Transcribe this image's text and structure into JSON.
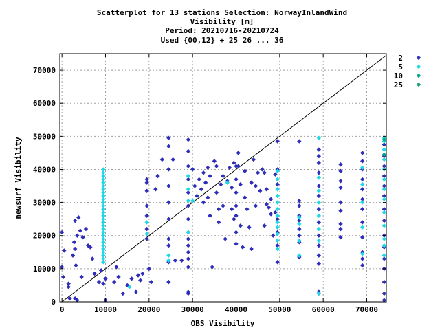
{
  "chart_data": {
    "type": "scatter",
    "title": [
      "Scatterplot for   13 stations Selection: NorwayInlandWind",
      "Visibility [m]",
      "Period: 20210716-20210724",
      "Used {00,12} + 25 26 ... 36"
    ],
    "xlabel": "OBS Visibility",
    "ylabel": "newsurf Visibility",
    "xlim": [
      -500,
      74500
    ],
    "ylim": [
      0,
      75000
    ],
    "xticks": [
      0,
      10000,
      20000,
      30000,
      40000,
      50000,
      60000,
      70000
    ],
    "yticks": [
      0,
      10000,
      20000,
      30000,
      40000,
      50000,
      60000,
      70000
    ],
    "grid": true,
    "diagonal": true,
    "legend_position": "right",
    "series": [
      {
        "name": "2",
        "color": "#2e2eb8",
        "points": [
          [
            0,
            21000
          ],
          [
            0,
            10500
          ],
          [
            500,
            15500
          ],
          [
            300,
            7500
          ],
          [
            1500,
            5500
          ],
          [
            1500,
            4500
          ],
          [
            1800,
            1000
          ],
          [
            2500,
            14000
          ],
          [
            2800,
            18000
          ],
          [
            3000,
            24500
          ],
          [
            3000,
            16000
          ],
          [
            3200,
            11000
          ],
          [
            3500,
            20000
          ],
          [
            3800,
            25500
          ],
          [
            3000,
            1000
          ],
          [
            3500,
            500
          ],
          [
            4200,
            21500
          ],
          [
            4500,
            7500
          ],
          [
            4800,
            19500
          ],
          [
            5500,
            22000
          ],
          [
            6000,
            17000
          ],
          [
            6500,
            16500
          ],
          [
            7000,
            13000
          ],
          [
            7500,
            8500
          ],
          [
            8500,
            6000
          ],
          [
            9000,
            9500
          ],
          [
            9500,
            5500
          ],
          [
            9500,
            24000
          ],
          [
            10000,
            500
          ],
          [
            10000,
            7000
          ],
          [
            12500,
            10500
          ],
          [
            12000,
            6000
          ],
          [
            13000,
            7500
          ],
          [
            14000,
            2500
          ],
          [
            15000,
            5000
          ],
          [
            16000,
            7000
          ],
          [
            17000,
            3000
          ],
          [
            17500,
            8000
          ],
          [
            18000,
            6500
          ],
          [
            18500,
            8500
          ],
          [
            19500,
            37000
          ],
          [
            19500,
            36000
          ],
          [
            19500,
            33500
          ],
          [
            19500,
            29000
          ],
          [
            19500,
            26000
          ],
          [
            19500,
            22000
          ],
          [
            19500,
            19000
          ],
          [
            20000,
            10000
          ],
          [
            20500,
            6000
          ],
          [
            21500,
            34000
          ],
          [
            22000,
            38000
          ],
          [
            23000,
            43000
          ],
          [
            24500,
            49500
          ],
          [
            24500,
            47000
          ],
          [
            24500,
            40000
          ],
          [
            24500,
            35000
          ],
          [
            24500,
            30000
          ],
          [
            24500,
            25000
          ],
          [
            24500,
            19000
          ],
          [
            24500,
            17000
          ],
          [
            24500,
            12000
          ],
          [
            24500,
            6000
          ],
          [
            25500,
            43000
          ],
          [
            26000,
            12500
          ],
          [
            27500,
            12500
          ],
          [
            29000,
            49000
          ],
          [
            29000,
            45500
          ],
          [
            29000,
            41000
          ],
          [
            29000,
            37000
          ],
          [
            29000,
            33000
          ],
          [
            29000,
            29000
          ],
          [
            29000,
            25000
          ],
          [
            29000,
            21000
          ],
          [
            29000,
            19000
          ],
          [
            29000,
            17000
          ],
          [
            29000,
            15000
          ],
          [
            29000,
            13000
          ],
          [
            29000,
            10500
          ],
          [
            29000,
            3000
          ],
          [
            29000,
            2500
          ],
          [
            30000,
            40000
          ],
          [
            30500,
            35000
          ],
          [
            31000,
            32000
          ],
          [
            31500,
            37000
          ],
          [
            32000,
            34000
          ],
          [
            32500,
            39000
          ],
          [
            32500,
            30000
          ],
          [
            33000,
            36000
          ],
          [
            33500,
            40500
          ],
          [
            33500,
            31500
          ],
          [
            34000,
            38000
          ],
          [
            34000,
            26000
          ],
          [
            34500,
            10500
          ],
          [
            35000,
            42500
          ],
          [
            35500,
            41000
          ],
          [
            35500,
            33000
          ],
          [
            36000,
            28000
          ],
          [
            36000,
            24000
          ],
          [
            36500,
            35500
          ],
          [
            37000,
            38000
          ],
          [
            37000,
            29000
          ],
          [
            37500,
            19000
          ],
          [
            38000,
            36500
          ],
          [
            38500,
            40500
          ],
          [
            39000,
            34500
          ],
          [
            39000,
            28000
          ],
          [
            39500,
            42000
          ],
          [
            39500,
            25000
          ],
          [
            40000,
            41000
          ],
          [
            40000,
            37000
          ],
          [
            40000,
            33000
          ],
          [
            40000,
            29000
          ],
          [
            40000,
            26000
          ],
          [
            40000,
            21000
          ],
          [
            40000,
            17500
          ],
          [
            40500,
            45000
          ],
          [
            40500,
            41000
          ],
          [
            41000,
            35500
          ],
          [
            41000,
            23000
          ],
          [
            41500,
            16500
          ],
          [
            42000,
            39500
          ],
          [
            42000,
            31500
          ],
          [
            42500,
            28000
          ],
          [
            43000,
            22500
          ],
          [
            43500,
            36000
          ],
          [
            43500,
            16000
          ],
          [
            44000,
            43000
          ],
          [
            44500,
            35000
          ],
          [
            44500,
            29000
          ],
          [
            45000,
            39000
          ],
          [
            45500,
            33500
          ],
          [
            46000,
            40000
          ],
          [
            46500,
            39000
          ],
          [
            46500,
            23000
          ],
          [
            47000,
            34000
          ],
          [
            47000,
            29500
          ],
          [
            47500,
            28500
          ],
          [
            48000,
            31000
          ],
          [
            48000,
            26500
          ],
          [
            48500,
            20000
          ],
          [
            49000,
            38500
          ],
          [
            49000,
            27000
          ],
          [
            49500,
            48500
          ],
          [
            49500,
            40000
          ],
          [
            49500,
            35500
          ],
          [
            49500,
            25000
          ],
          [
            49500,
            21000
          ],
          [
            49500,
            17000
          ],
          [
            49500,
            12000
          ],
          [
            54500,
            48500
          ],
          [
            54500,
            30500
          ],
          [
            54500,
            29000
          ],
          [
            54500,
            26000
          ],
          [
            54500,
            24500
          ],
          [
            54500,
            22000
          ],
          [
            54500,
            20000
          ],
          [
            54500,
            18000
          ],
          [
            54500,
            13500
          ],
          [
            59000,
            46000
          ],
          [
            59000,
            44000
          ],
          [
            59000,
            42000
          ],
          [
            59000,
            39000
          ],
          [
            59000,
            35000
          ],
          [
            59000,
            32000
          ],
          [
            59000,
            28000
          ],
          [
            59000,
            24000
          ],
          [
            59000,
            20000
          ],
          [
            59000,
            17000
          ],
          [
            59000,
            14000
          ],
          [
            59000,
            11500
          ],
          [
            59000,
            3000
          ],
          [
            59000,
            2500
          ],
          [
            64000,
            41500
          ],
          [
            64000,
            39500
          ],
          [
            64000,
            36500
          ],
          [
            64000,
            34500
          ],
          [
            64000,
            30000
          ],
          [
            64000,
            27500
          ],
          [
            64000,
            23500
          ],
          [
            64000,
            22000
          ],
          [
            64000,
            19500
          ],
          [
            69000,
            45000
          ],
          [
            69000,
            42500
          ],
          [
            69000,
            40000
          ],
          [
            69000,
            37000
          ],
          [
            69000,
            34000
          ],
          [
            69000,
            31000
          ],
          [
            69000,
            28000
          ],
          [
            69000,
            24000
          ],
          [
            69000,
            19500
          ],
          [
            69000,
            15000
          ],
          [
            69000,
            13000
          ],
          [
            69000,
            11000
          ],
          [
            74000,
            47500
          ],
          [
            74000,
            44000
          ],
          [
            74000,
            41000
          ],
          [
            74000,
            38000
          ],
          [
            74000,
            35000
          ],
          [
            74000,
            32000
          ],
          [
            74000,
            28000
          ],
          [
            74000,
            24500
          ],
          [
            74000,
            20000
          ],
          [
            74000,
            16500
          ],
          [
            74000,
            13000
          ],
          [
            74000,
            10000
          ],
          [
            74000,
            6000
          ],
          [
            74000,
            2500
          ],
          [
            74000,
            500
          ]
        ]
      },
      {
        "name": "5",
        "color": "#1fd8e6",
        "points": [
          [
            9500,
            40000
          ],
          [
            9500,
            39000
          ],
          [
            9500,
            38000
          ],
          [
            9500,
            37000
          ],
          [
            9500,
            36000
          ],
          [
            9500,
            35000
          ],
          [
            9500,
            34000
          ],
          [
            9500,
            33000
          ],
          [
            9500,
            32000
          ],
          [
            9500,
            31000
          ],
          [
            9500,
            30000
          ],
          [
            9500,
            29000
          ],
          [
            9500,
            28000
          ],
          [
            9500,
            27000
          ],
          [
            9500,
            26000
          ],
          [
            9500,
            25000
          ],
          [
            9500,
            24000
          ],
          [
            9500,
            23000
          ],
          [
            9500,
            22000
          ],
          [
            9500,
            21000
          ],
          [
            9500,
            20000
          ],
          [
            9500,
            19000
          ],
          [
            9500,
            18000
          ],
          [
            9500,
            17000
          ],
          [
            9500,
            16000
          ],
          [
            9500,
            15000
          ],
          [
            9500,
            14000
          ],
          [
            9500,
            13000
          ],
          [
            9500,
            12000
          ],
          [
            15500,
            4500
          ],
          [
            19500,
            24000
          ],
          [
            19500,
            20500
          ],
          [
            24500,
            14000
          ],
          [
            24500,
            12500
          ],
          [
            29000,
            38000
          ],
          [
            29000,
            34000
          ],
          [
            29000,
            30500
          ],
          [
            29000,
            21000
          ],
          [
            30000,
            30500
          ],
          [
            38000,
            36000
          ],
          [
            49500,
            39500
          ],
          [
            49500,
            37000
          ],
          [
            49500,
            34000
          ],
          [
            49500,
            32000
          ],
          [
            49500,
            30000
          ],
          [
            49500,
            28000
          ],
          [
            49500,
            26000
          ],
          [
            49500,
            24000
          ],
          [
            49500,
            22500
          ],
          [
            49500,
            20500
          ],
          [
            49500,
            18500
          ],
          [
            49500,
            16000
          ],
          [
            54500,
            25500
          ],
          [
            54500,
            23500
          ],
          [
            54500,
            18500
          ],
          [
            54500,
            14000
          ],
          [
            59000,
            49500
          ],
          [
            59000,
            37500
          ],
          [
            59000,
            33500
          ],
          [
            59000,
            30000
          ],
          [
            59000,
            26000
          ],
          [
            59000,
            22000
          ],
          [
            59000,
            18500
          ],
          [
            59000,
            2500
          ],
          [
            69000,
            40500
          ],
          [
            69000,
            35500
          ],
          [
            69000,
            30000
          ],
          [
            69000,
            22500
          ],
          [
            69000,
            14500
          ],
          [
            74000,
            49500
          ],
          [
            74000,
            48500
          ],
          [
            74000,
            46000
          ],
          [
            74000,
            43000
          ],
          [
            74000,
            40000
          ],
          [
            74000,
            37000
          ],
          [
            74000,
            34000
          ],
          [
            74000,
            31000
          ],
          [
            74000,
            27000
          ],
          [
            74000,
            23000
          ],
          [
            74000,
            19000
          ],
          [
            74000,
            17000
          ],
          [
            74000,
            14000
          ]
        ]
      },
      {
        "name": "10",
        "color": "#0aa88a",
        "points": [
          [
            74000,
            49000
          ],
          [
            74000,
            44500
          ]
        ]
      },
      {
        "name": "25",
        "color": "#18a070",
        "points": []
      }
    ]
  }
}
